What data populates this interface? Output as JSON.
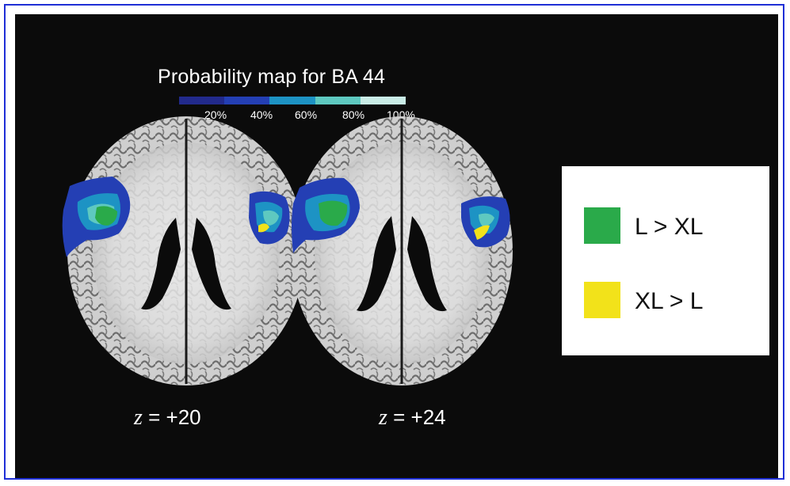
{
  "figure": {
    "title": "Probability map for BA 44",
    "colorbar": {
      "ticks": [
        "20%",
        "40%",
        "60%",
        "80%",
        "100%"
      ],
      "colors": [
        "#222a8c",
        "#243fb4",
        "#1d93c4",
        "#5ec9c0",
        "#c9ece6"
      ]
    },
    "slices": [
      {
        "z_label": "z",
        "eq": " = +20"
      },
      {
        "z_label": "z",
        "eq": " = +24"
      }
    ],
    "legend": [
      {
        "label": "L > XL",
        "color": "#2aaa4a"
      },
      {
        "label": "XL > L",
        "color": "#f2e21a"
      }
    ],
    "colors": {
      "background": "#0b0b0b",
      "frame": "#1f2fd6",
      "brain_white_matter": "#d9d9d9",
      "brain_cortex": "#8a8a8a"
    }
  }
}
